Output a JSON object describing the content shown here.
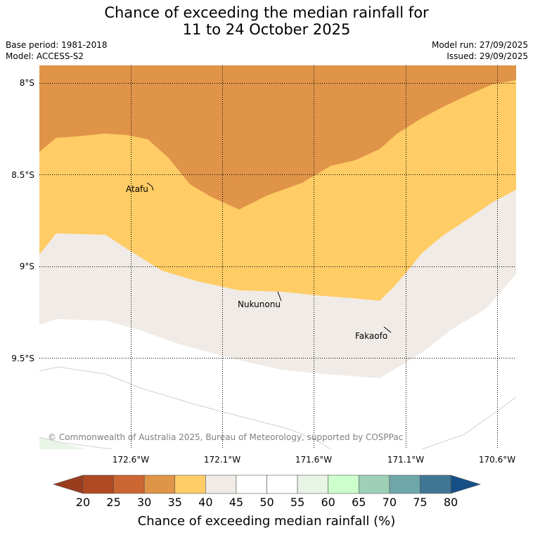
{
  "title": {
    "line1": "Chance of exceeding the median rainfall for",
    "line2": "11 to 24 October 2025"
  },
  "meta": {
    "base_period": "Base period: 1981-2018",
    "model": "Model: ACCESS-S2",
    "model_run": "Model run: 27/09/2025",
    "issued": "Issued: 29/09/2025"
  },
  "map": {
    "lat_labels": [
      "8°S",
      "8.5°S",
      "9°S",
      "9.5°S"
    ],
    "lon_labels": [
      "172.6°W",
      "172.1°W",
      "171.6°W",
      "171.1°W",
      "170.6°W"
    ],
    "places": [
      {
        "name": "Atafu"
      },
      {
        "name": "Nukunonu"
      },
      {
        "name": "Fakaofo"
      }
    ],
    "credit": "© Commonwealth of Australia 2025, Bureau of Meteorology, supported by COSPPac",
    "zone_colors": {
      "30-35": "#e09448",
      "35-40": "#ffcc66",
      "40-45": "#f0ebe6",
      "45-55": "#ffffff",
      "55-60": "#e8f5e6"
    }
  },
  "colorbar": {
    "labels": [
      "20",
      "25",
      "30",
      "35",
      "40",
      "45",
      "50",
      "55",
      "60",
      "65",
      "70",
      "75",
      "80"
    ],
    "colors": [
      "#b04a22",
      "#cc6633",
      "#e09448",
      "#ffcc66",
      "#f0ebe6",
      "#ffffff",
      "#ffffff",
      "#e8f5e6",
      "#ccffcc",
      "#9ed0b8",
      "#6fa6aa",
      "#3f7694"
    ],
    "under_color": "#9a3c1e",
    "over_color": "#154f86",
    "title": "Chance of exceeding median rainfall (%)"
  }
}
